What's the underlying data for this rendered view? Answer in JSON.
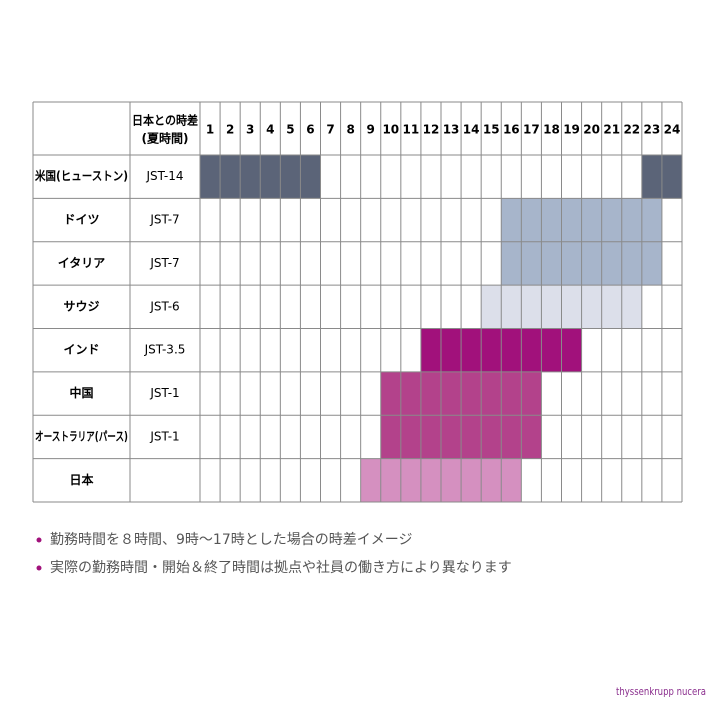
{
  "header": {
    "offset_label": [
      "日本との時差",
      "(夏時間)"
    ],
    "hours": [
      1,
      2,
      3,
      4,
      5,
      6,
      7,
      8,
      9,
      10,
      11,
      12,
      13,
      14,
      15,
      16,
      17,
      18,
      19,
      20,
      21,
      22,
      23,
      24
    ]
  },
  "rows": [
    {
      "country": "米国(ヒューストン)",
      "offset": "JST-14",
      "color": "#5b6478",
      "spans": [
        [
          1,
          6
        ],
        [
          23,
          24
        ]
      ]
    },
    {
      "country": "ドイツ",
      "offset": "JST-7",
      "color": "#a7b5cb",
      "spans": [
        [
          16,
          23
        ]
      ]
    },
    {
      "country": "イタリア",
      "offset": "JST-7",
      "color": "#a7b5cb",
      "spans": [
        [
          16,
          23
        ]
      ]
    },
    {
      "country": "サウジ",
      "offset": "JST-6",
      "color": "#dcdfea",
      "spans": [
        [
          15,
          22
        ]
      ]
    },
    {
      "country": "インド",
      "offset": "JST-3.5",
      "color": "#a1117b",
      "spans": [
        [
          12,
          19
        ]
      ]
    },
    {
      "country": "中国",
      "offset": "JST-1",
      "color": "#b3428b",
      "spans": [
        [
          10,
          17
        ]
      ]
    },
    {
      "country": "オーストラリア(パース)",
      "offset": "JST-1",
      "color": "#b3428b",
      "spans": [
        [
          10,
          17
        ]
      ]
    },
    {
      "country": "日本",
      "color": "#d590c0",
      "spans": [
        [
          9,
          16
        ]
      ]
    }
  ],
  "notes": [
    "勤務時間を８時間、9時～17時とした場合の時差イメージ",
    "実際の勤務時間・開始＆終了時間は拠点や社員の働き方により異なります"
  ],
  "logo": "thyssenkrupp nucera"
}
